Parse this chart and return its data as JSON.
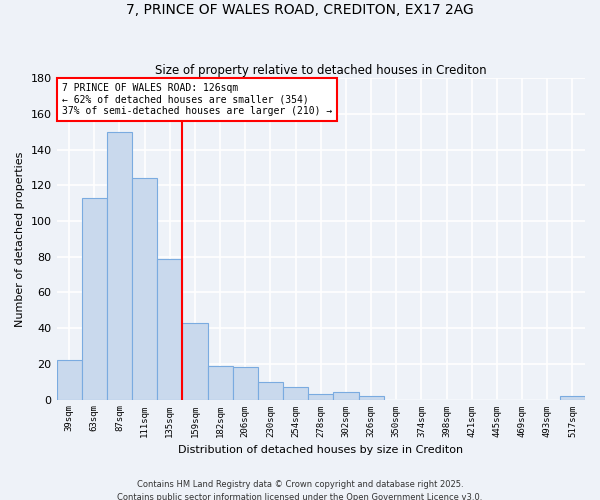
{
  "title1": "7, PRINCE OF WALES ROAD, CREDITON, EX17 2AG",
  "title2": "Size of property relative to detached houses in Crediton",
  "xlabel": "Distribution of detached houses by size in Crediton",
  "ylabel": "Number of detached properties",
  "bar_labels": [
    "39sqm",
    "63sqm",
    "87sqm",
    "111sqm",
    "135sqm",
    "159sqm",
    "182sqm",
    "206sqm",
    "230sqm",
    "254sqm",
    "278sqm",
    "302sqm",
    "326sqm",
    "350sqm",
    "374sqm",
    "398sqm",
    "421sqm",
    "445sqm",
    "469sqm",
    "493sqm",
    "517sqm"
  ],
  "bar_values": [
    22,
    113,
    150,
    124,
    79,
    43,
    19,
    18,
    10,
    7,
    3,
    4,
    2,
    0,
    0,
    0,
    0,
    0,
    0,
    0,
    2
  ],
  "bar_color": "#c9d9ed",
  "bar_edge_color": "#7aabe0",
  "vline_x": 4.5,
  "vline_color": "red",
  "annotation_text": "7 PRINCE OF WALES ROAD: 126sqm\n← 62% of detached houses are smaller (354)\n37% of semi-detached houses are larger (210) →",
  "annotation_box_color": "white",
  "annotation_box_edge": "red",
  "background_color": "#eef2f8",
  "grid_color": "white",
  "footer1": "Contains HM Land Registry data © Crown copyright and database right 2025.",
  "footer2": "Contains public sector information licensed under the Open Government Licence v3.0.",
  "ylim": [
    0,
    180
  ],
  "yticks": [
    0,
    20,
    40,
    60,
    80,
    100,
    120,
    140,
    160,
    180
  ]
}
